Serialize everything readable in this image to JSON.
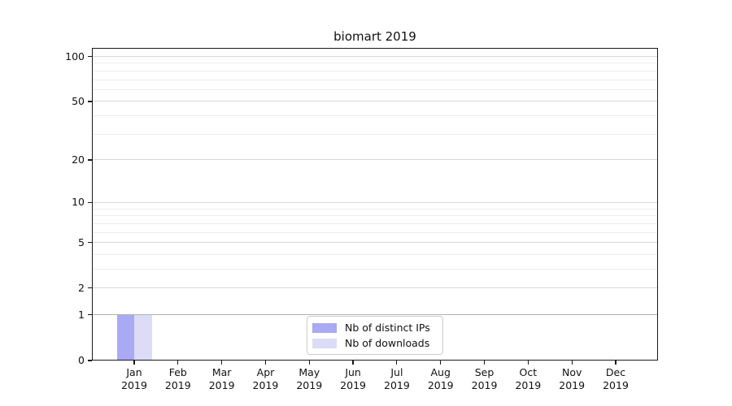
{
  "title": "biomart 2019",
  "chart_data": {
    "type": "bar",
    "title": "biomart 2019",
    "categories": [
      {
        "month": "Jan",
        "year": "2019"
      },
      {
        "month": "Feb",
        "year": "2019"
      },
      {
        "month": "Mar",
        "year": "2019"
      },
      {
        "month": "Apr",
        "year": "2019"
      },
      {
        "month": "May",
        "year": "2019"
      },
      {
        "month": "Jun",
        "year": "2019"
      },
      {
        "month": "Jul",
        "year": "2019"
      },
      {
        "month": "Aug",
        "year": "2019"
      },
      {
        "month": "Sep",
        "year": "2019"
      },
      {
        "month": "Oct",
        "year": "2019"
      },
      {
        "month": "Nov",
        "year": "2019"
      },
      {
        "month": "Dec",
        "year": "2019"
      }
    ],
    "series": [
      {
        "name": "Nb of distinct IPs",
        "color": "#a9a9f4",
        "values": [
          1,
          0,
          0,
          0,
          0,
          0,
          0,
          0,
          0,
          0,
          0,
          0
        ]
      },
      {
        "name": "Nb of downloads",
        "color": "#dcdcf8",
        "values": [
          1,
          0,
          0,
          0,
          0,
          0,
          0,
          0,
          0,
          0,
          0,
          0
        ]
      }
    ],
    "yscale": "log1p",
    "ylim": [
      0,
      114
    ],
    "y_major_ticks": [
      100,
      50,
      20,
      10,
      5,
      2,
      1,
      0
    ],
    "y_minor_ticks": [
      90,
      80,
      70,
      60,
      40,
      30,
      9,
      8,
      7,
      6,
      4,
      3
    ],
    "xlabel": "",
    "ylabel": "",
    "grid": true,
    "legend_position": "lower center"
  },
  "colors": {
    "bar_distinct_ips": "#a9a9f4",
    "bar_downloads": "#dcdcf8",
    "grid_major": "#d8d8d8",
    "grid_unit_line": "#b0b0b0",
    "grid_minor": "#ececec",
    "axis_spine": "#1a1a1a",
    "legend_border": "#cccccc",
    "background": "#ffffff"
  }
}
